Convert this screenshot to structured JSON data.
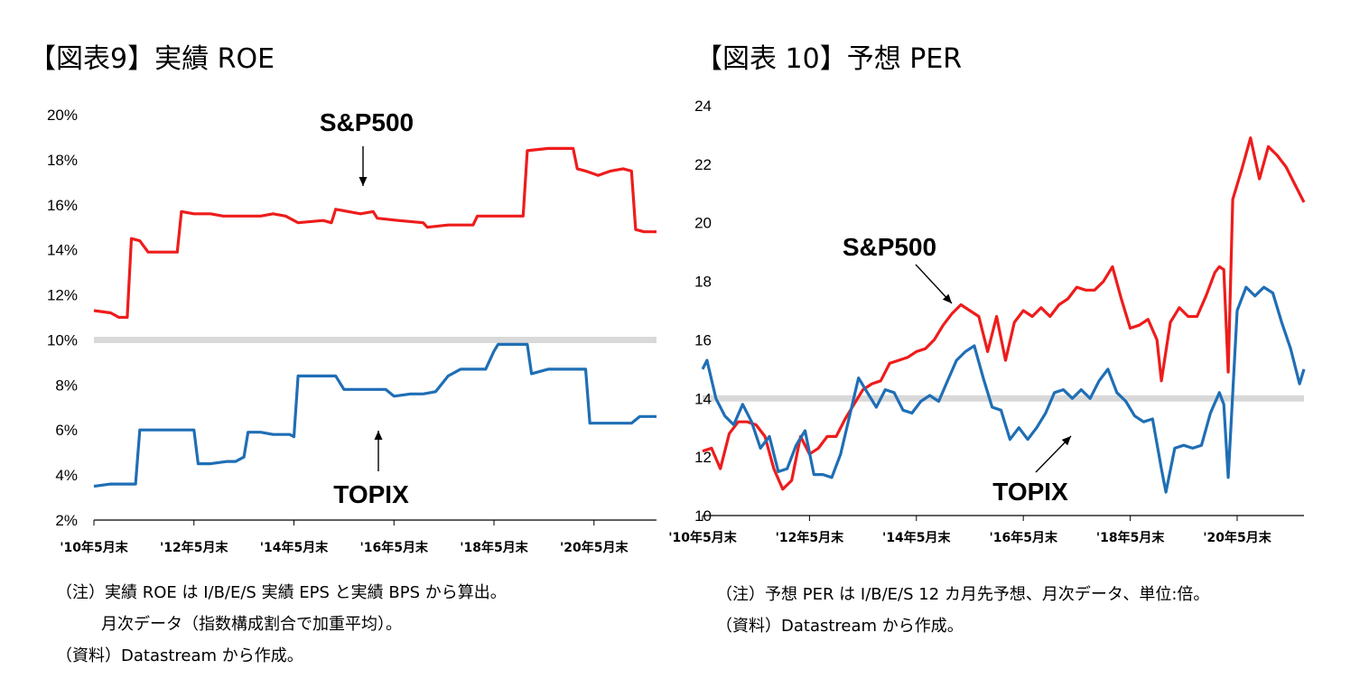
{
  "chart_data": [
    {
      "type": "line",
      "title": "【図表9】実績 ROE",
      "y_unit": "%",
      "ylim": [
        2,
        20
      ],
      "yticks": [
        "20%",
        "18%",
        "16%",
        "14%",
        "12%",
        "10%",
        "8%",
        "6%",
        "4%",
        "2%"
      ],
      "xlim": [
        "2010-05",
        "2021-08"
      ],
      "xticks": [
        "'10年5月末",
        "'12年5月末",
        "'14年5月末",
        "'16年5月末",
        "'18年5月末",
        "'20年5月末"
      ],
      "reference_line": 10,
      "grid": false,
      "series": [
        {
          "name": "S&P500",
          "color": "#ee1c1c",
          "label_pos": "above",
          "points": [
            [
              "2010-05",
              11.3
            ],
            [
              "2010-09",
              11.2
            ],
            [
              "2010-11",
              11.0
            ],
            [
              "2011-01",
              11.0
            ],
            [
              "2011-02",
              14.5
            ],
            [
              "2011-04",
              14.4
            ],
            [
              "2011-06",
              13.9
            ],
            [
              "2011-08",
              13.9
            ],
            [
              "2012-01",
              13.9
            ],
            [
              "2012-02",
              15.7
            ],
            [
              "2012-05",
              15.6
            ],
            [
              "2012-09",
              15.6
            ],
            [
              "2012-12",
              15.5
            ],
            [
              "2013-06",
              15.5
            ],
            [
              "2013-09",
              15.5
            ],
            [
              "2013-12",
              15.6
            ],
            [
              "2014-03",
              15.5
            ],
            [
              "2014-06",
              15.2
            ],
            [
              "2014-12",
              15.3
            ],
            [
              "2015-02",
              15.2
            ],
            [
              "2015-03",
              15.8
            ],
            [
              "2015-06",
              15.7
            ],
            [
              "2015-09",
              15.6
            ],
            [
              "2015-12",
              15.7
            ],
            [
              "2016-01",
              15.4
            ],
            [
              "2016-06",
              15.3
            ],
            [
              "2016-12",
              15.2
            ],
            [
              "2017-01",
              15.0
            ],
            [
              "2017-06",
              15.1
            ],
            [
              "2017-12",
              15.1
            ],
            [
              "2018-01",
              15.5
            ],
            [
              "2018-06",
              15.5
            ],
            [
              "2018-12",
              15.5
            ],
            [
              "2019-01",
              18.4
            ],
            [
              "2019-06",
              18.5
            ],
            [
              "2019-12",
              18.5
            ],
            [
              "2020-01",
              17.6
            ],
            [
              "2020-03",
              17.5
            ],
            [
              "2020-06",
              17.3
            ],
            [
              "2020-09",
              17.5
            ],
            [
              "2020-12",
              17.6
            ],
            [
              "2021-02",
              17.5
            ],
            [
              "2021-03",
              14.9
            ],
            [
              "2021-05",
              14.8
            ],
            [
              "2021-08",
              14.8
            ]
          ]
        },
        {
          "name": "TOPIX",
          "color": "#1f6eb5",
          "label_pos": "below",
          "points": [
            [
              "2010-05",
              3.5
            ],
            [
              "2010-09",
              3.6
            ],
            [
              "2011-01",
              3.6
            ],
            [
              "2011-03",
              3.6
            ],
            [
              "2011-04",
              6.0
            ],
            [
              "2011-09",
              6.0
            ],
            [
              "2011-12",
              6.0
            ],
            [
              "2012-05",
              6.0
            ],
            [
              "2012-06",
              4.5
            ],
            [
              "2012-09",
              4.5
            ],
            [
              "2013-01",
              4.6
            ],
            [
              "2013-03",
              4.6
            ],
            [
              "2013-05",
              4.8
            ],
            [
              "2013-06",
              5.9
            ],
            [
              "2013-09",
              5.9
            ],
            [
              "2013-12",
              5.8
            ],
            [
              "2014-04",
              5.8
            ],
            [
              "2014-05",
              5.7
            ],
            [
              "2014-06",
              8.4
            ],
            [
              "2014-09",
              8.4
            ],
            [
              "2015-03",
              8.4
            ],
            [
              "2015-05",
              7.8
            ],
            [
              "2015-09",
              7.8
            ],
            [
              "2015-12",
              7.8
            ],
            [
              "2016-03",
              7.8
            ],
            [
              "2016-05",
              7.5
            ],
            [
              "2016-09",
              7.6
            ],
            [
              "2016-12",
              7.6
            ],
            [
              "2017-03",
              7.7
            ],
            [
              "2017-06",
              8.4
            ],
            [
              "2017-09",
              8.7
            ],
            [
              "2017-12",
              8.7
            ],
            [
              "2018-03",
              8.7
            ],
            [
              "2018-05",
              9.5
            ],
            [
              "2018-06",
              9.8
            ],
            [
              "2018-09",
              9.8
            ],
            [
              "2018-12",
              9.8
            ],
            [
              "2019-01",
              9.8
            ],
            [
              "2019-02",
              8.5
            ],
            [
              "2019-06",
              8.7
            ],
            [
              "2019-12",
              8.7
            ],
            [
              "2020-03",
              8.7
            ],
            [
              "2020-04",
              6.3
            ],
            [
              "2020-06",
              6.3
            ],
            [
              "2020-09",
              6.3
            ],
            [
              "2020-12",
              6.3
            ],
            [
              "2021-02",
              6.3
            ],
            [
              "2021-04",
              6.6
            ],
            [
              "2021-08",
              6.6
            ]
          ]
        }
      ],
      "notes": [
        "（注）実績 ROE は I/B/E/S 実績 EPS と実績 BPS から算出。",
        "月次データ（指数構成割合で加重平均）。",
        "（資料）Datastream から作成。"
      ]
    },
    {
      "type": "line",
      "title": "【図表 10】予想 PER",
      "ylim": [
        10,
        24
      ],
      "yticks": [
        "24",
        "22",
        "20",
        "18",
        "16",
        "14",
        "12",
        "10"
      ],
      "xlim": [
        "2010-05",
        "2021-08"
      ],
      "xticks": [
        "'10年5月末",
        "'12年5月末",
        "'14年5月末",
        "'16年5月末",
        "'18年5月末",
        "'20年5月末"
      ],
      "reference_line": 14,
      "grid": false,
      "series": [
        {
          "name": "S&P500",
          "color": "#ee1c1c",
          "label_pos": "above",
          "points": [
            [
              "2010-05",
              12.2
            ],
            [
              "2010-07",
              12.3
            ],
            [
              "2010-09",
              11.6
            ],
            [
              "2010-11",
              12.8
            ],
            [
              "2011-01",
              13.2
            ],
            [
              "2011-03",
              13.2
            ],
            [
              "2011-05",
              13.1
            ],
            [
              "2011-07",
              12.7
            ],
            [
              "2011-09",
              11.6
            ],
            [
              "2011-11",
              10.9
            ],
            [
              "2012-01",
              11.2
            ],
            [
              "2012-03",
              12.7
            ],
            [
              "2012-05",
              12.1
            ],
            [
              "2012-07",
              12.3
            ],
            [
              "2012-09",
              12.7
            ],
            [
              "2012-11",
              12.7
            ],
            [
              "2013-01",
              13.3
            ],
            [
              "2013-03",
              13.8
            ],
            [
              "2013-05",
              14.3
            ],
            [
              "2013-07",
              14.5
            ],
            [
              "2013-09",
              14.6
            ],
            [
              "2013-11",
              15.2
            ],
            [
              "2014-01",
              15.3
            ],
            [
              "2014-03",
              15.4
            ],
            [
              "2014-05",
              15.6
            ],
            [
              "2014-07",
              15.7
            ],
            [
              "2014-09",
              16.0
            ],
            [
              "2014-11",
              16.5
            ],
            [
              "2015-01",
              16.9
            ],
            [
              "2015-03",
              17.2
            ],
            [
              "2015-05",
              17.0
            ],
            [
              "2015-07",
              16.8
            ],
            [
              "2015-09",
              15.6
            ],
            [
              "2015-11",
              16.8
            ],
            [
              "2016-01",
              15.3
            ],
            [
              "2016-03",
              16.6
            ],
            [
              "2016-05",
              17.0
            ],
            [
              "2016-07",
              16.8
            ],
            [
              "2016-09",
              17.1
            ],
            [
              "2016-11",
              16.8
            ],
            [
              "2017-01",
              17.2
            ],
            [
              "2017-03",
              17.4
            ],
            [
              "2017-05",
              17.8
            ],
            [
              "2017-07",
              17.7
            ],
            [
              "2017-09",
              17.7
            ],
            [
              "2017-11",
              18.0
            ],
            [
              "2018-01",
              18.5
            ],
            [
              "2018-03",
              17.4
            ],
            [
              "2018-05",
              16.4
            ],
            [
              "2018-07",
              16.5
            ],
            [
              "2018-09",
              16.7
            ],
            [
              "2018-11",
              16.0
            ],
            [
              "2018-12",
              14.6
            ],
            [
              "2019-02",
              16.6
            ],
            [
              "2019-04",
              17.1
            ],
            [
              "2019-06",
              16.8
            ],
            [
              "2019-08",
              16.8
            ],
            [
              "2019-10",
              17.5
            ],
            [
              "2019-12",
              18.3
            ],
            [
              "2020-01",
              18.5
            ],
            [
              "2020-02",
              18.4
            ],
            [
              "2020-03",
              14.9
            ],
            [
              "2020-04",
              20.8
            ],
            [
              "2020-06",
              21.8
            ],
            [
              "2020-08",
              22.9
            ],
            [
              "2020-10",
              21.5
            ],
            [
              "2020-12",
              22.6
            ],
            [
              "2021-02",
              22.3
            ],
            [
              "2021-04",
              21.9
            ],
            [
              "2021-06",
              21.3
            ],
            [
              "2021-08",
              20.7
            ]
          ]
        },
        {
          "name": "TOPIX",
          "color": "#1f6eb5",
          "label_pos": "below",
          "points": [
            [
              "2010-05",
              15.0
            ],
            [
              "2010-06",
              15.3
            ],
            [
              "2010-08",
              14.0
            ],
            [
              "2010-10",
              13.4
            ],
            [
              "2010-12",
              13.1
            ],
            [
              "2011-02",
              13.8
            ],
            [
              "2011-04",
              13.2
            ],
            [
              "2011-06",
              12.3
            ],
            [
              "2011-08",
              12.7
            ],
            [
              "2011-10",
              11.5
            ],
            [
              "2011-12",
              11.6
            ],
            [
              "2012-02",
              12.4
            ],
            [
              "2012-04",
              12.9
            ],
            [
              "2012-06",
              11.4
            ],
            [
              "2012-08",
              11.4
            ],
            [
              "2012-10",
              11.3
            ],
            [
              "2012-12",
              12.1
            ],
            [
              "2013-02",
              13.4
            ],
            [
              "2013-04",
              14.7
            ],
            [
              "2013-06",
              14.2
            ],
            [
              "2013-08",
              13.7
            ],
            [
              "2013-10",
              14.3
            ],
            [
              "2013-12",
              14.2
            ],
            [
              "2014-02",
              13.6
            ],
            [
              "2014-04",
              13.5
            ],
            [
              "2014-06",
              13.9
            ],
            [
              "2014-08",
              14.1
            ],
            [
              "2014-10",
              13.9
            ],
            [
              "2014-12",
              14.6
            ],
            [
              "2015-02",
              15.3
            ],
            [
              "2015-04",
              15.6
            ],
            [
              "2015-06",
              15.8
            ],
            [
              "2015-08",
              14.7
            ],
            [
              "2015-10",
              13.7
            ],
            [
              "2015-12",
              13.6
            ],
            [
              "2016-02",
              12.6
            ],
            [
              "2016-04",
              13.0
            ],
            [
              "2016-06",
              12.6
            ],
            [
              "2016-08",
              13.0
            ],
            [
              "2016-10",
              13.5
            ],
            [
              "2016-12",
              14.2
            ],
            [
              "2017-02",
              14.3
            ],
            [
              "2017-04",
              14.0
            ],
            [
              "2017-06",
              14.3
            ],
            [
              "2017-08",
              14.0
            ],
            [
              "2017-10",
              14.6
            ],
            [
              "2017-12",
              15.0
            ],
            [
              "2018-02",
              14.2
            ],
            [
              "2018-04",
              13.9
            ],
            [
              "2018-06",
              13.4
            ],
            [
              "2018-08",
              13.2
            ],
            [
              "2018-10",
              13.3
            ],
            [
              "2018-12",
              11.6
            ],
            [
              "2019-01",
              10.8
            ],
            [
              "2019-03",
              12.3
            ],
            [
              "2019-05",
              12.4
            ],
            [
              "2019-07",
              12.3
            ],
            [
              "2019-09",
              12.4
            ],
            [
              "2019-11",
              13.5
            ],
            [
              "2020-01",
              14.2
            ],
            [
              "2020-02",
              13.8
            ],
            [
              "2020-03",
              11.3
            ],
            [
              "2020-05",
              17.0
            ],
            [
              "2020-07",
              17.8
            ],
            [
              "2020-09",
              17.5
            ],
            [
              "2020-11",
              17.8
            ],
            [
              "2021-01",
              17.6
            ],
            [
              "2021-03",
              16.6
            ],
            [
              "2021-05",
              15.7
            ],
            [
              "2021-07",
              14.5
            ],
            [
              "2021-08",
              15.0
            ]
          ]
        }
      ],
      "notes": [
        "（注）予想 PER は I/B/E/S 12 カ月先予想、月次データ、単位:倍。",
        "（資料）Datastream から作成。"
      ]
    }
  ]
}
